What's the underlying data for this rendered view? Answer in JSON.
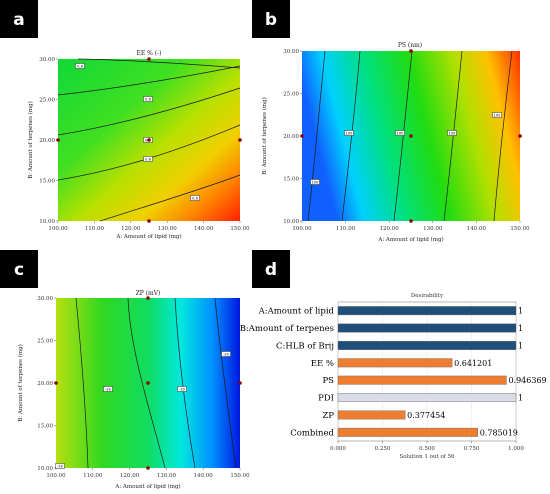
{
  "panels": {
    "a": {
      "badge": "a"
    },
    "b": {
      "badge": "b"
    },
    "c": {
      "badge": "c"
    },
    "d": {
      "badge": "d"
    }
  },
  "colors": {
    "blue": "#1f4e79",
    "orange": "#ed7d31",
    "gray": "#d9dce6",
    "green": "#00c800",
    "red": "#ff2000",
    "cyan": "#00ffff"
  },
  "chart_data": [
    {
      "id": "a",
      "type": "heatmap",
      "title": "EE % (-)",
      "xlabel": "A: Amount of lipid (mg)",
      "ylabel": "B: Amount of terpenes (mg)",
      "xlim": [
        100,
        150
      ],
      "ylim": [
        10,
        30
      ],
      "xticks": [
        "100.00",
        "110.00",
        "120.00",
        "130.00",
        "140.00",
        "150.00"
      ],
      "yticks": [
        "10.00",
        "15.00",
        "20.00",
        "25.00",
        "30.00"
      ],
      "contour_labels": [
        "0.6",
        "0.6",
        "0.6",
        "0.6",
        "0.6"
      ],
      "design_points": [
        [
          100,
          20
        ],
        [
          125,
          30
        ],
        [
          125,
          20
        ],
        [
          125,
          10
        ],
        [
          150,
          20
        ]
      ]
    },
    {
      "id": "b",
      "type": "heatmap",
      "title": "PS (nm)",
      "xlabel": "A: Amount of lipid (mg)",
      "ylabel": "B: Amount of terpenes (mg)",
      "xlim": [
        100,
        150
      ],
      "ylim": [
        10,
        30
      ],
      "xticks": [
        "100.00",
        "110.00",
        "120.00",
        "130.00",
        "140.00",
        "150.00"
      ],
      "yticks": [
        "10.00",
        "15.00",
        "20.00",
        "25.00",
        "30.00"
      ],
      "contour_labels": [
        "100",
        "100",
        "100",
        "100",
        "100"
      ],
      "design_points": [
        [
          100,
          20
        ],
        [
          125,
          30
        ],
        [
          125,
          20
        ],
        [
          125,
          10
        ],
        [
          150,
          20
        ]
      ]
    },
    {
      "id": "c",
      "type": "heatmap",
      "title": "ZP (mV)",
      "xlabel": "A: Amount of lipid (mg)",
      "ylabel": "B: Amount of terpenes (mg)",
      "xlim": [
        100,
        150
      ],
      "ylim": [
        10,
        30
      ],
      "xticks": [
        "100.00",
        "110.00",
        "120.00",
        "130.00",
        "140.00",
        "150.00"
      ],
      "yticks": [
        "10.00",
        "15.00",
        "20.00",
        "25.00",
        "30.00"
      ],
      "contour_labels": [
        "-20",
        "-20",
        "-20",
        "-20"
      ],
      "design_points": [
        [
          100,
          20
        ],
        [
          125,
          30
        ],
        [
          125,
          20
        ],
        [
          125,
          10
        ],
        [
          150,
          20
        ]
      ]
    },
    {
      "id": "d",
      "type": "bar",
      "title": "Desirability",
      "xlabel": "Solution 1 out of 56",
      "xlim": [
        0,
        1
      ],
      "xticks": [
        "0.000",
        "0.250",
        "0.500",
        "0.750",
        "1.000"
      ],
      "categories": [
        "A:Amount of lipid",
        "B:Amount of terpenes",
        "C:HLB of Brij",
        "EE %",
        "PS",
        "PDI",
        "ZP",
        "Combined"
      ],
      "values": [
        1,
        1,
        1,
        0.641201,
        0.946369,
        1,
        0.377454,
        0.785019
      ],
      "value_labels": [
        "1",
        "1",
        "1",
        "0.641201",
        "0.946369",
        "1",
        "0.377454",
        "0.785019"
      ],
      "bar_colors": [
        "blue",
        "blue",
        "blue",
        "orange",
        "orange",
        "gray",
        "orange",
        "orange"
      ]
    }
  ]
}
